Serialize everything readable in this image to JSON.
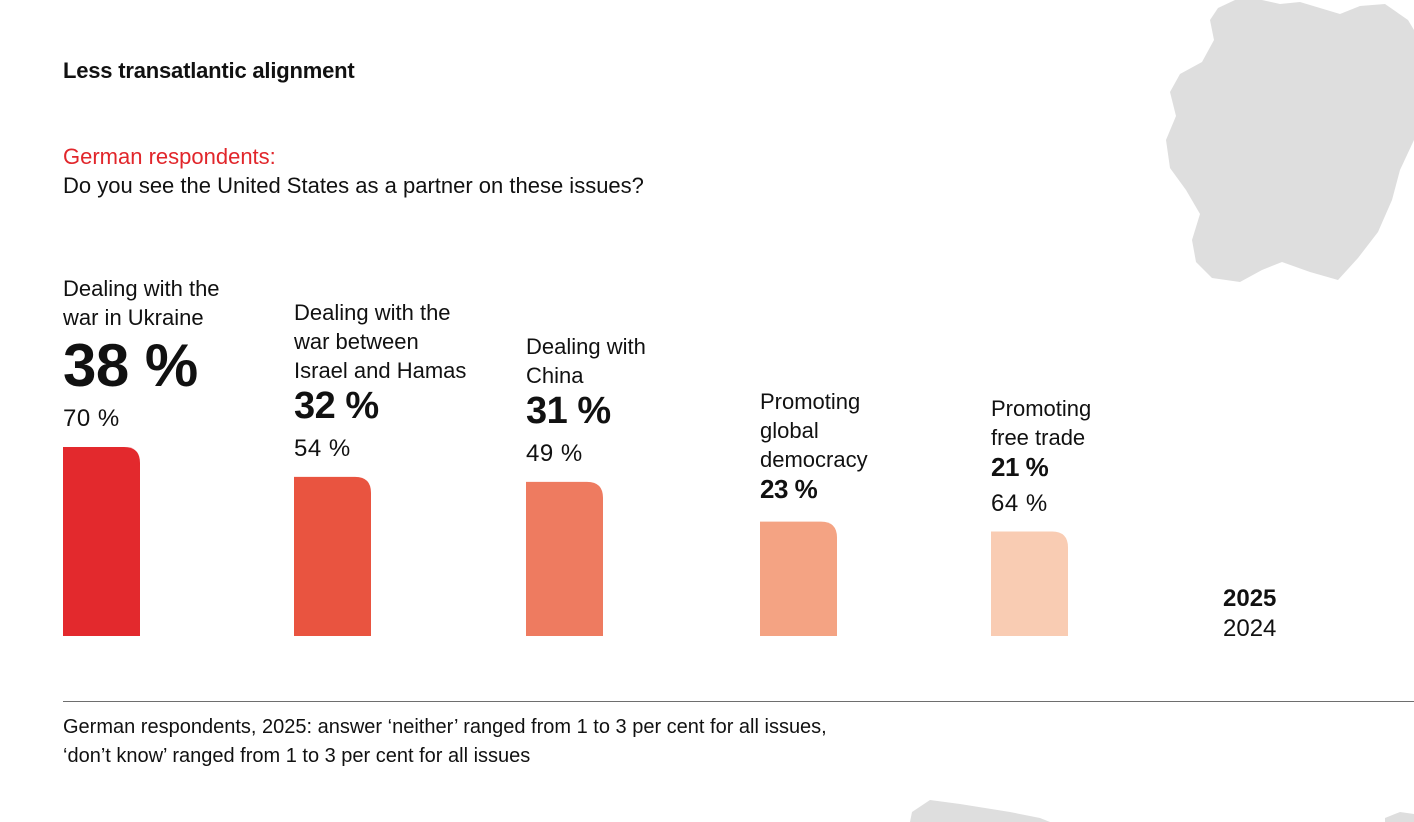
{
  "title": "Less transatlantic alignment",
  "subtitle_red": "German respondents:",
  "subtitle_question": "Do you see the United States as a partner on these issues?",
  "chart_data": {
    "type": "bar",
    "categories": [
      "Dealing with the war in Ukraine",
      "Dealing with the war between Israel and Hamas",
      "Dealing with China",
      "Promoting global democracy",
      "Promoting free trade"
    ],
    "category_lines": [
      [
        "Dealing with the",
        "war in Ukraine"
      ],
      [
        "Dealing with the",
        "war between",
        "Israel and Hamas"
      ],
      [
        "Dealing with",
        "China"
      ],
      [
        "Promoting",
        "global",
        "democracy"
      ],
      [
        "Promoting",
        "free trade"
      ]
    ],
    "series": [
      {
        "name": "2025",
        "values": [
          38,
          32,
          31,
          23,
          21
        ]
      }
    ],
    "values_2025_labels": [
      "38 %",
      "32 %",
      "31 %",
      "23 %",
      "21 %"
    ],
    "values_2024_labels": [
      "70 %",
      "54 %",
      "49 %",
      "",
      "64 %"
    ],
    "values_2024": [
      70,
      54,
      49,
      null,
      64
    ],
    "bar_colors": [
      "#e3292d",
      "#e95440",
      "#ee7b60",
      "#f4a383",
      "#f9ccb3"
    ],
    "unit": "%",
    "legend": [
      "2025",
      "2024"
    ],
    "legend_placement": "right"
  },
  "legend_2025": "2025",
  "legend_2024": "2024",
  "footnote_line1": "German respondents, 2025: answer ‘neither’ ranged from 1 to 3 per cent for all issues,",
  "footnote_line2": "‘don’t know’ ranged from 1 to 3 per cent for all issues",
  "map_color": "#dedede"
}
